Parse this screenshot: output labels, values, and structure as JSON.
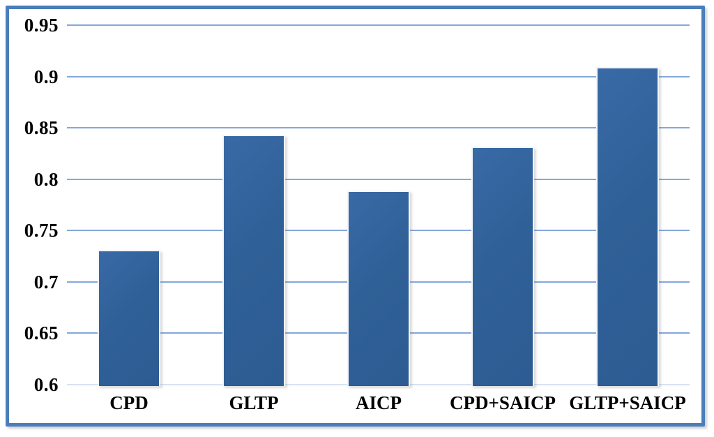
{
  "chart_data": {
    "type": "bar",
    "title": "",
    "xlabel": "",
    "ylabel": "",
    "categories": [
      "CPD",
      "GLTP",
      "AICP",
      "CPD+SAICP",
      "GLTP+SAICP"
    ],
    "values": [
      0.731,
      0.843,
      0.789,
      0.832,
      0.909
    ],
    "ylim": [
      0.6,
      0.95
    ],
    "ytick_step": 0.05,
    "yticks": [
      {
        "value": 0.95,
        "label": "0.95"
      },
      {
        "value": 0.9,
        "label": "0.9"
      },
      {
        "value": 0.85,
        "label": "0.85"
      },
      {
        "value": 0.8,
        "label": "0.8"
      },
      {
        "value": 0.75,
        "label": "0.75"
      },
      {
        "value": 0.7,
        "label": "0.7"
      },
      {
        "value": 0.65,
        "label": "0.65"
      },
      {
        "value": 0.6,
        "label": "0.6"
      }
    ],
    "grid": true,
    "legend": false,
    "colors": {
      "bar_fill": "#2f6097",
      "bar_fill_light": "#3a6aa6",
      "bar_outline": "#f3f6fa",
      "gridline": "#84a7d9",
      "baseline": "#d8e3f2",
      "frame_border": "#4a7ebb",
      "text": "#000000",
      "background": "#ffffff"
    }
  }
}
